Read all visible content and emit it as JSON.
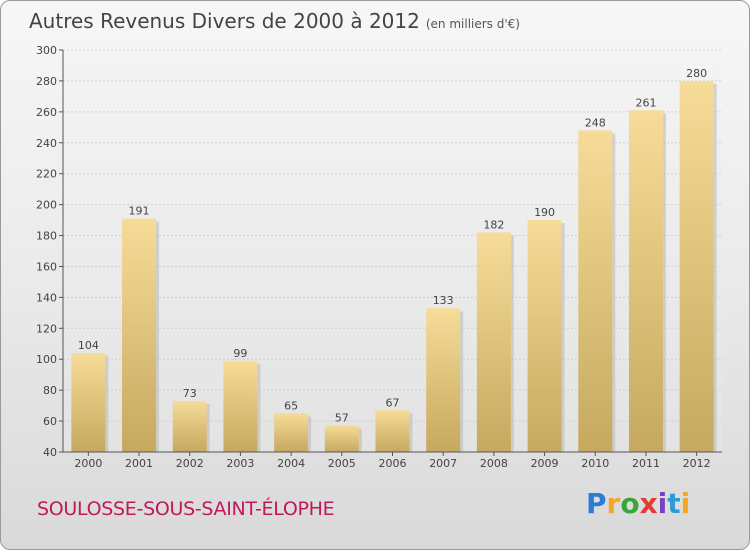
{
  "title": "Autres Revenus Divers de 2000 à 2012",
  "subtitle": "(en milliers d'€)",
  "town": "SOULOSSE-SOUS-SAINT-ÉLOPHE",
  "logo": [
    "P",
    "r",
    "o",
    "x",
    "i",
    "t",
    "i"
  ],
  "chart_data": {
    "type": "bar",
    "title": "Autres Revenus Divers de 2000 à 2012",
    "subtitle": "(en milliers d'€)",
    "xlabel": "",
    "ylabel": "",
    "categories": [
      "2000",
      "2001",
      "2002",
      "2003",
      "2004",
      "2005",
      "2006",
      "2007",
      "2008",
      "2009",
      "2010",
      "2011",
      "2012"
    ],
    "values": [
      104,
      191,
      73,
      99,
      65,
      57,
      67,
      133,
      182,
      190,
      248,
      261,
      280
    ],
    "ylim": [
      40,
      300
    ],
    "yticks": [
      40,
      60,
      80,
      100,
      120,
      140,
      160,
      180,
      200,
      220,
      240,
      260,
      280,
      300
    ],
    "grid": true,
    "bar_color": "#e8cc88"
  }
}
